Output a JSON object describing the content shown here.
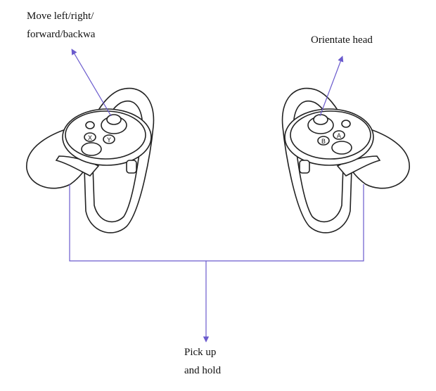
{
  "labels": {
    "move_line1": "Move left/right/",
    "move_line2": "forward/backwa",
    "orient": "Orientate head",
    "pick_line1": "Pick up",
    "pick_line2": "and hold"
  },
  "left_controller": {
    "buttons": [
      "X",
      "Y"
    ]
  },
  "right_controller": {
    "buttons": [
      "A",
      "B"
    ]
  },
  "colors": {
    "arrow": "#6a5acd",
    "outline": "#222222"
  }
}
